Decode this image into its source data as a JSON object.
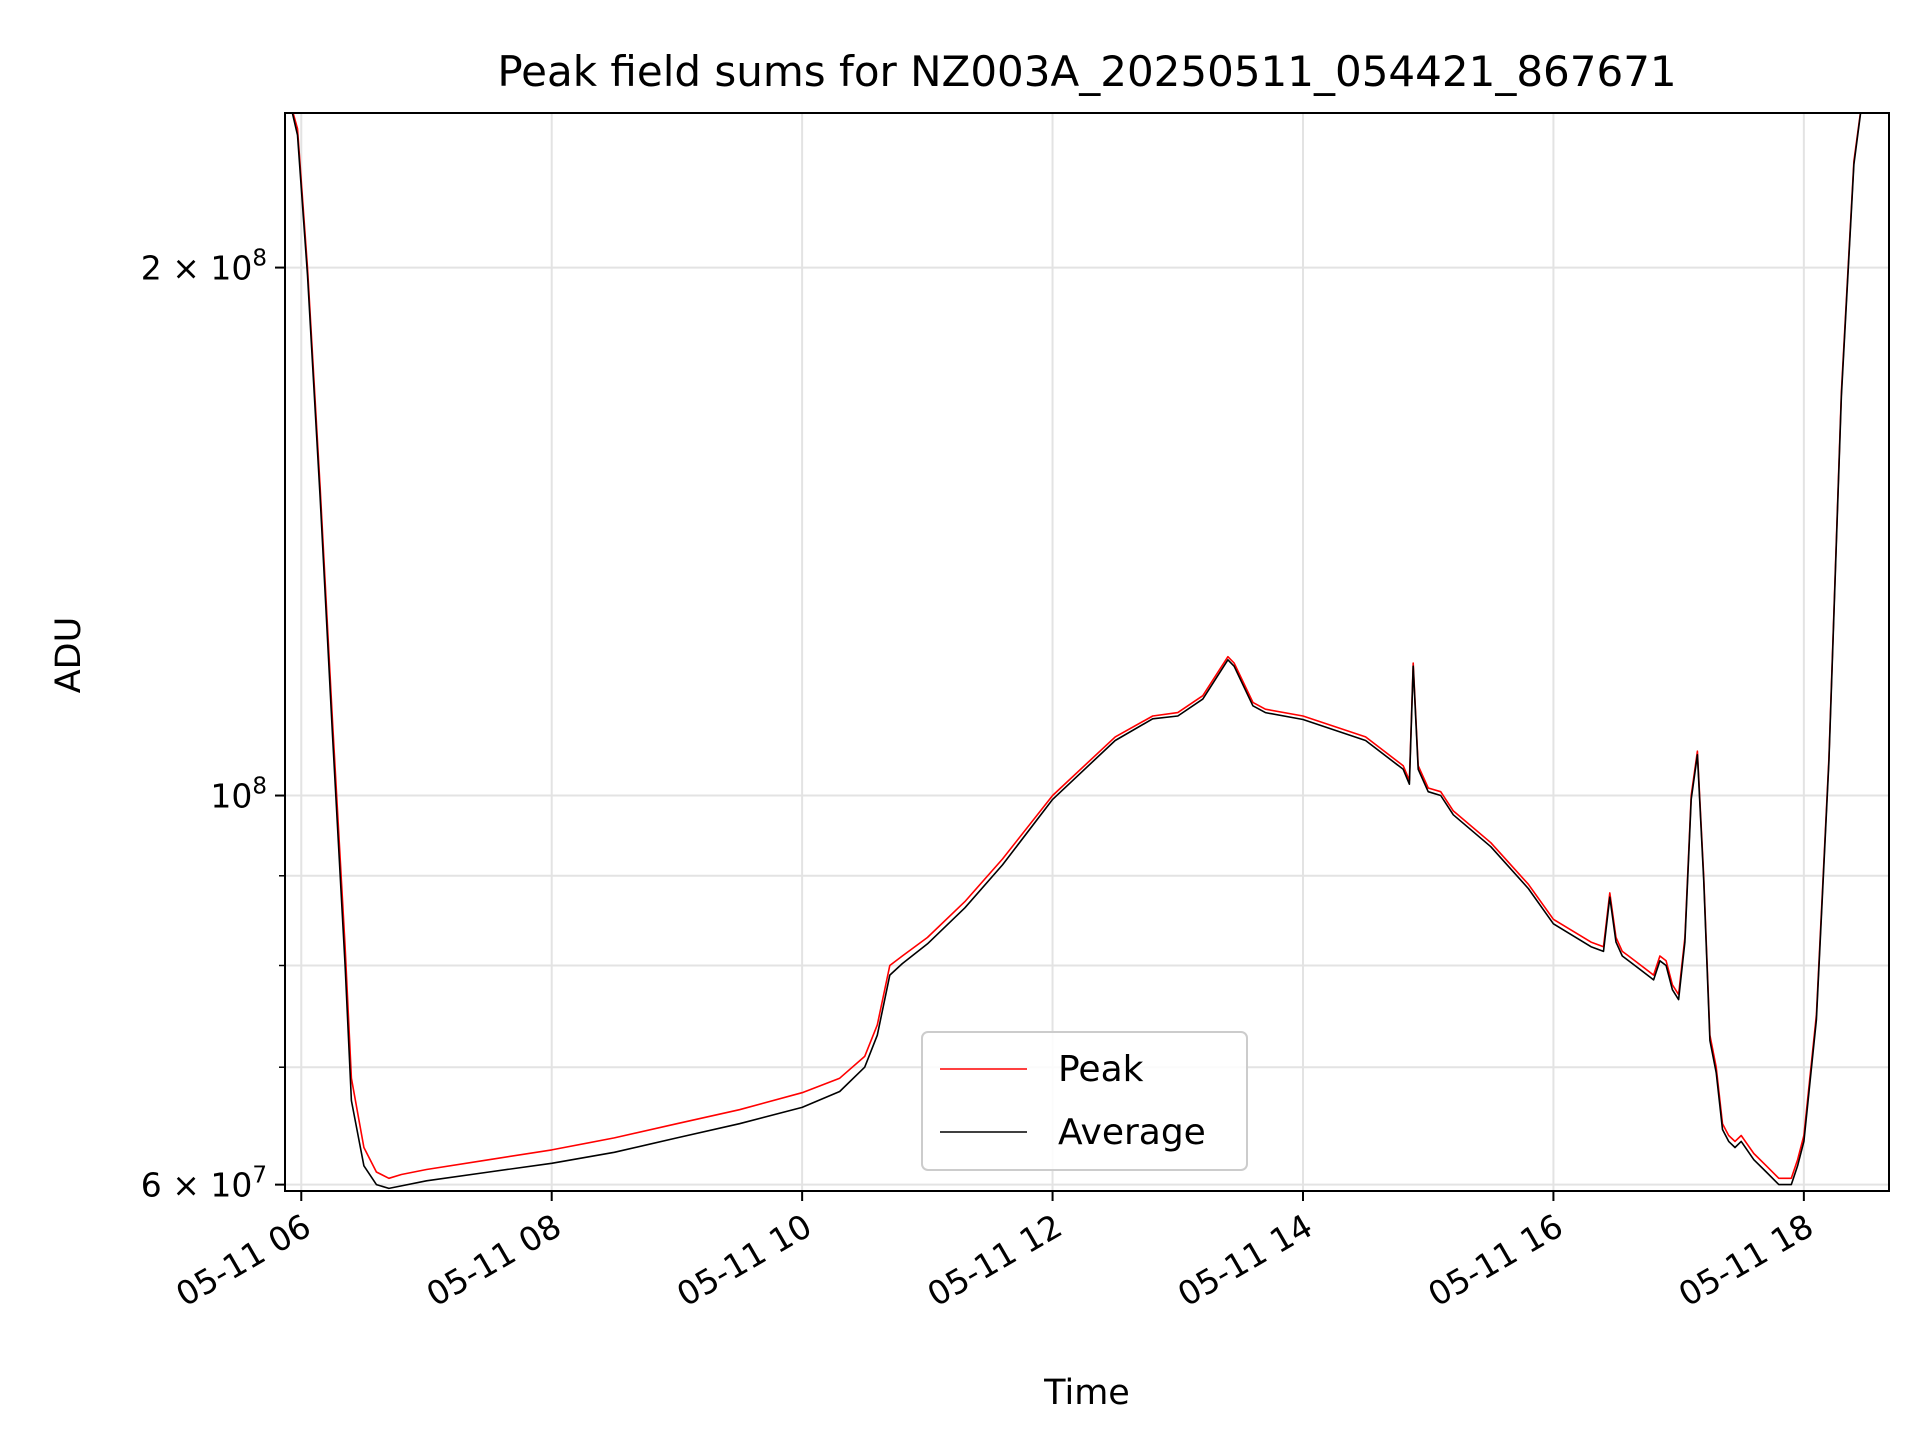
{
  "chart_data": {
    "type": "line",
    "title": "Peak field sums for NZ003A_20250511_054421_867671",
    "xlabel": "Time",
    "ylabel": "ADU",
    "y_scale": "log",
    "ylim": [
      59500000,
      245000000
    ],
    "xlim": [
      5.87,
      18.68
    ],
    "x_ticks": [
      {
        "value": 6,
        "label": "05-11 06"
      },
      {
        "value": 8,
        "label": "05-11 08"
      },
      {
        "value": 10,
        "label": "05-11 10"
      },
      {
        "value": 12,
        "label": "05-11 12"
      },
      {
        "value": 14,
        "label": "05-11 14"
      },
      {
        "value": 16,
        "label": "05-11 16"
      },
      {
        "value": 18,
        "label": "05-11 18"
      }
    ],
    "y_ticks_major": [
      {
        "value": 60000000,
        "label": "6 × 10",
        "exp": "7"
      },
      {
        "value": 100000000,
        "label": "10",
        "exp": "8"
      },
      {
        "value": 200000000,
        "label": "2 × 10",
        "exp": "8"
      }
    ],
    "y_ticks_minor": [
      70000000,
      80000000,
      90000000
    ],
    "grid": true,
    "legend_position": "lower-center",
    "series": [
      {
        "name": "Peak",
        "color": "#ff0000",
        "x": [
          5.9,
          5.97,
          6.05,
          6.15,
          6.25,
          6.35,
          6.4,
          6.5,
          6.6,
          6.7,
          6.8,
          7.0,
          7.5,
          8.0,
          8.5,
          9.0,
          9.5,
          10.0,
          10.3,
          10.5,
          10.6,
          10.7,
          10.8,
          11.0,
          11.3,
          11.6,
          12.0,
          12.5,
          12.8,
          13.0,
          13.2,
          13.4,
          13.45,
          13.6,
          13.7,
          14.0,
          14.5,
          14.8,
          14.85,
          14.88,
          14.92,
          15.0,
          15.1,
          15.2,
          15.5,
          15.8,
          16.0,
          16.3,
          16.4,
          16.45,
          16.5,
          16.55,
          16.6,
          16.7,
          16.8,
          16.85,
          16.9,
          16.95,
          17.0,
          17.05,
          17.1,
          17.15,
          17.2,
          17.25,
          17.3,
          17.35,
          17.4,
          17.45,
          17.5,
          17.6,
          17.7,
          17.8,
          17.9,
          17.95,
          18.0,
          18.1,
          18.2,
          18.3,
          18.4,
          18.5
        ],
        "values": [
          250000000,
          240000000,
          200000000,
          150000000,
          110000000,
          82000000,
          69000000,
          63000000,
          61000000,
          60500000,
          60800000,
          61200000,
          62000000,
          62800000,
          63800000,
          65000000,
          66200000,
          67700000,
          69000000,
          71000000,
          74000000,
          80000000,
          81000000,
          83000000,
          87000000,
          92000000,
          100000000,
          108000000,
          111000000,
          111500000,
          114000000,
          120000000,
          119000000,
          113000000,
          112000000,
          111000000,
          108000000,
          104000000,
          102000000,
          119000000,
          104000000,
          101000000,
          100500000,
          98000000,
          94000000,
          89000000,
          85000000,
          82500000,
          82000000,
          88000000,
          83000000,
          81500000,
          81000000,
          80000000,
          79000000,
          81000000,
          80500000,
          78000000,
          77000000,
          83000000,
          100000000,
          106000000,
          90000000,
          73000000,
          70000000,
          65000000,
          64000000,
          63500000,
          64000000,
          62500000,
          61500000,
          60500000,
          60500000,
          62000000,
          64000000,
          75000000,
          105000000,
          170000000,
          230000000,
          260000000
        ]
      },
      {
        "name": "Average",
        "color": "#000000",
        "x": [
          5.9,
          5.97,
          6.05,
          6.15,
          6.25,
          6.35,
          6.4,
          6.5,
          6.6,
          6.7,
          6.8,
          7.0,
          7.5,
          8.0,
          8.5,
          9.0,
          9.5,
          10.0,
          10.3,
          10.5,
          10.6,
          10.7,
          10.8,
          11.0,
          11.3,
          11.6,
          12.0,
          12.5,
          12.8,
          13.0,
          13.2,
          13.4,
          13.45,
          13.6,
          13.7,
          14.0,
          14.5,
          14.8,
          14.85,
          14.88,
          14.92,
          15.0,
          15.1,
          15.2,
          15.5,
          15.8,
          16.0,
          16.3,
          16.4,
          16.45,
          16.5,
          16.55,
          16.6,
          16.7,
          16.8,
          16.85,
          16.9,
          16.95,
          17.0,
          17.05,
          17.1,
          17.15,
          17.2,
          17.25,
          17.3,
          17.35,
          17.4,
          17.45,
          17.5,
          17.6,
          17.7,
          17.8,
          17.9,
          17.95,
          18.0,
          18.1,
          18.2,
          18.3,
          18.4,
          18.5
        ],
        "values": [
          250000000,
          238000000,
          198000000,
          148000000,
          108000000,
          80000000,
          67000000,
          61500000,
          60000000,
          59700000,
          59900000,
          60300000,
          61000000,
          61700000,
          62600000,
          63800000,
          65000000,
          66400000,
          67800000,
          70000000,
          73000000,
          79000000,
          80200000,
          82300000,
          86300000,
          91300000,
          99500000,
          107500000,
          110600000,
          111000000,
          113500000,
          119500000,
          118500000,
          112500000,
          111500000,
          110500000,
          107500000,
          103500000,
          101500000,
          118500000,
          103500000,
          100500000,
          100000000,
          97500000,
          93500000,
          88500000,
          84500000,
          82000000,
          81500000,
          87500000,
          82500000,
          81000000,
          80500000,
          79500000,
          78500000,
          80500000,
          80000000,
          77500000,
          76500000,
          82500000,
          99500000,
          105500000,
          89500000,
          72500000,
          69500000,
          64500000,
          63500000,
          63000000,
          63500000,
          62000000,
          61000000,
          60000000,
          60000000,
          61500000,
          63500000,
          74500000,
          104500000,
          169000000,
          229000000,
          260000000
        ]
      }
    ]
  }
}
